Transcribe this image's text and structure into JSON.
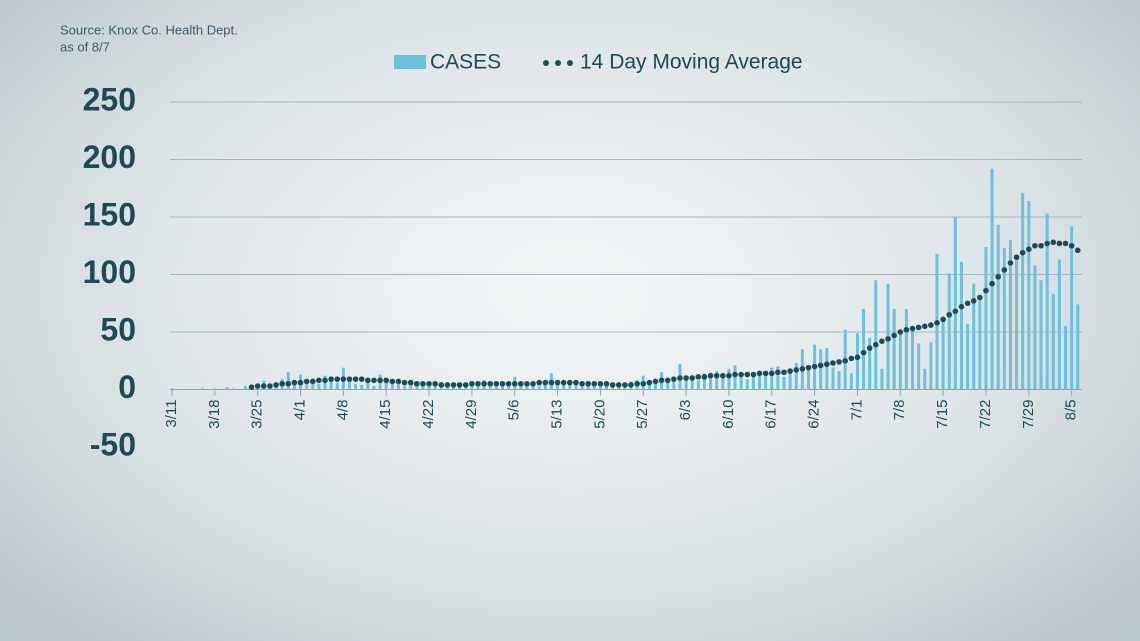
{
  "chart_data": {
    "type": "bar",
    "source": "Source: Knox Co. Health Dept.",
    "subtitle": "as of 8/7",
    "categories": [
      "3/11",
      null,
      null,
      null,
      null,
      null,
      null,
      "3/18",
      null,
      null,
      null,
      null,
      null,
      null,
      "3/25",
      null,
      null,
      null,
      null,
      null,
      null,
      "4/1",
      null,
      null,
      null,
      null,
      null,
      null,
      "4/8",
      null,
      null,
      null,
      null,
      null,
      null,
      "4/15",
      null,
      null,
      null,
      null,
      null,
      null,
      "4/22",
      null,
      null,
      null,
      null,
      null,
      null,
      "4/29",
      null,
      null,
      null,
      null,
      null,
      null,
      "5/6",
      null,
      null,
      null,
      null,
      null,
      null,
      "5/13",
      null,
      null,
      null,
      null,
      null,
      null,
      "5/20",
      null,
      null,
      null,
      null,
      null,
      null,
      "5/27",
      null,
      null,
      null,
      null,
      null,
      null,
      "6/3",
      null,
      null,
      null,
      null,
      null,
      null,
      "6/10",
      null,
      null,
      null,
      null,
      null,
      null,
      "6/17",
      null,
      null,
      null,
      null,
      null,
      null,
      "6/24",
      null,
      null,
      null,
      null,
      null,
      null,
      "7/1",
      null,
      null,
      null,
      null,
      null,
      null,
      "7/8",
      null,
      null,
      null,
      null,
      null,
      null,
      "7/15",
      null,
      null,
      null,
      null,
      null,
      null,
      "7/22",
      null,
      null,
      null,
      null,
      null,
      null,
      "7/29",
      null,
      null,
      null,
      null,
      null,
      null,
      "8/5",
      null
    ],
    "series": [
      {
        "name": "CASES",
        "type": "bar",
        "color": "#6cc2db",
        "values": [
          1,
          0,
          0,
          0,
          0,
          1,
          0,
          1,
          0,
          2,
          1,
          0,
          3,
          1,
          5,
          8,
          3,
          6,
          9,
          15,
          4,
          13,
          6,
          8,
          5,
          12,
          9,
          6,
          19,
          8,
          5,
          4,
          7,
          3,
          13,
          6,
          5,
          7,
          3,
          4,
          5,
          6,
          4,
          3,
          5,
          2,
          4,
          6,
          3,
          6,
          5,
          8,
          4,
          3,
          6,
          5,
          11,
          7,
          4,
          6,
          3,
          5,
          14,
          7,
          5,
          4,
          6,
          3,
          5,
          4,
          6,
          3,
          4,
          5,
          2,
          7,
          8,
          12,
          5,
          9,
          15,
          10,
          7,
          22,
          9,
          11,
          8,
          14,
          10,
          16,
          13,
          18,
          21,
          12,
          9,
          15,
          14,
          16,
          19,
          20,
          11,
          14,
          23,
          35,
          17,
          39,
          35,
          36,
          19,
          16,
          52,
          14,
          49,
          70,
          45,
          95,
          18,
          92,
          70,
          52,
          70,
          52,
          40,
          18,
          41,
          118,
          60,
          101,
          150,
          111,
          57,
          92,
          80,
          124,
          192,
          143,
          123,
          130,
          115,
          171,
          164,
          108,
          95,
          153,
          83,
          113,
          55,
          142,
          74
        ]
      },
      {
        "name": "14 Day Moving Average",
        "type": "dots",
        "color": "#1b4d57",
        "values": [
          null,
          null,
          null,
          null,
          null,
          null,
          null,
          null,
          null,
          null,
          null,
          null,
          null,
          2,
          3,
          3,
          3,
          4,
          5,
          5,
          6,
          6,
          7,
          7,
          8,
          8,
          9,
          9,
          9,
          9,
          9,
          9,
          8,
          8,
          8,
          8,
          7,
          7,
          6,
          6,
          5,
          5,
          5,
          5,
          4,
          4,
          4,
          4,
          4,
          5,
          5,
          5,
          5,
          5,
          5,
          5,
          5,
          5,
          5,
          5,
          6,
          6,
          6,
          6,
          6,
          6,
          6,
          5,
          5,
          5,
          5,
          5,
          4,
          4,
          4,
          4,
          5,
          5,
          6,
          7,
          8,
          8,
          9,
          10,
          10,
          10,
          11,
          11,
          12,
          12,
          12,
          12,
          13,
          13,
          13,
          13,
          14,
          14,
          14,
          15,
          15,
          16,
          17,
          18,
          19,
          20,
          21,
          22,
          23,
          24,
          25,
          27,
          28,
          32,
          36,
          39,
          42,
          44,
          47,
          50,
          52,
          53,
          54,
          55,
          56,
          58,
          61,
          65,
          68,
          72,
          75,
          77,
          80,
          86,
          92,
          98,
          104,
          110,
          115,
          119,
          122,
          125,
          125,
          127,
          128,
          127,
          127,
          125,
          121
        ]
      }
    ],
    "ylim": [
      -50,
      250
    ],
    "yticks": [
      -50,
      0,
      50,
      100,
      150,
      200,
      250
    ],
    "grid": true
  }
}
